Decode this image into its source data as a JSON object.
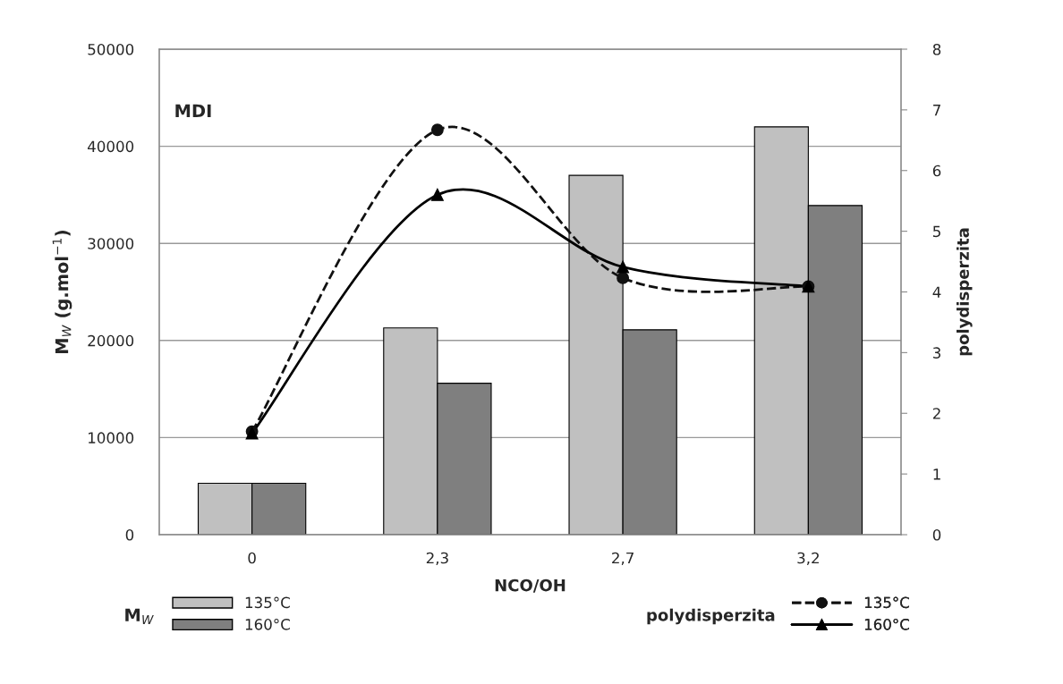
{
  "chart_data": {
    "type": "bar",
    "categories": [
      "0",
      "2,3",
      "2,7",
      "3,2"
    ],
    "xlabel": "NCO/OH",
    "ylabel": "M$_{W}$ (g.mol$^{−1}$)",
    "y2label": "polydisperzita",
    "legend_title": [
      "M$_{W}$",
      "polydisperzita"
    ],
    "annotations": [
      "MDI"
    ],
    "series": [
      {
        "name": "135°C",
        "color": "#c0c0c0",
        "values": [
          5300,
          21300,
          37000,
          42000
        ]
      },
      {
        "name": "160°C",
        "color": "#7f7f7f",
        "values": [
          5300,
          15600,
          21100,
          33900
        ]
      },
      {
        "name": "135°C",
        "type": "line",
        "axis": "y2",
        "color": "#111111",
        "marker": "circle",
        "line_style": "dashed",
        "values": [
          1.7,
          6.67,
          4.23,
          4.09
        ]
      },
      {
        "name": "160°C",
        "type": "line",
        "axis": "y2",
        "color": "#000000",
        "marker": "triangle",
        "line_style": "solid",
        "values": [
          1.67,
          5.6,
          4.41,
          4.09
        ]
      }
    ],
    "ylim": [
      0,
      50000
    ],
    "yticks": [
      0,
      10000,
      20000,
      30000,
      40000,
      50000
    ],
    "y2lim": [
      0,
      8
    ],
    "y2ticks": [
      0,
      1,
      2,
      3,
      4,
      5,
      6,
      7,
      8
    ],
    "grid": "y",
    "legend": "bottom"
  }
}
